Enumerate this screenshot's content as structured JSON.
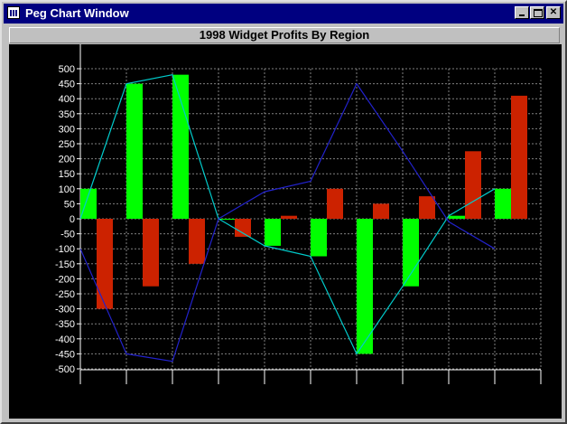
{
  "window": {
    "title": "Peg Chart Window",
    "icon": "chart-app-icon",
    "controls": [
      "minimize",
      "maximize",
      "close"
    ]
  },
  "chart_data": {
    "type": "bar",
    "title": "1998 Widget Profits By Region",
    "xlabel": "",
    "ylabel": "",
    "ylim": [
      -500,
      500
    ],
    "yticks": [
      500,
      450,
      400,
      350,
      300,
      250,
      200,
      150,
      100,
      50,
      0,
      -50,
      -100,
      -150,
      -200,
      -250,
      -300,
      -350,
      -400,
      -450,
      -500
    ],
    "grid": true,
    "background": "#000000",
    "categories": [
      "",
      "",
      "",
      "",
      "",
      "",
      "",
      "",
      "",
      ""
    ],
    "series": [
      {
        "color": "#00ff00",
        "values": [
          100,
          450,
          480,
          0,
          -90,
          -125,
          -450,
          -225,
          10,
          100
        ]
      },
      {
        "color": "#cc2200",
        "values": [
          -300,
          -225,
          -150,
          -60,
          10,
          100,
          50,
          75,
          225,
          410
        ]
      }
    ],
    "lines": [
      {
        "color": "#00cccc",
        "values": [
          0,
          450,
          480,
          0,
          -90,
          -125,
          -450,
          -225,
          10,
          100
        ]
      },
      {
        "color": "#2222cc",
        "values": [
          -100,
          -450,
          -475,
          0,
          90,
          125,
          450,
          225,
          -10,
          -100
        ]
      }
    ]
  }
}
